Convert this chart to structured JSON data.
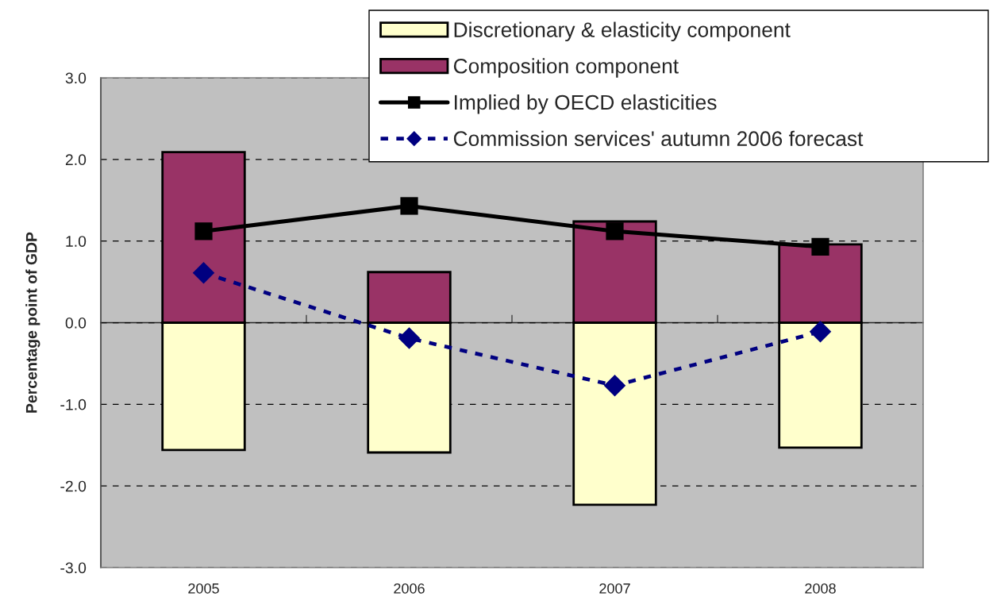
{
  "chart_data": {
    "type": "bar",
    "ylabel": "Percentage point of GDP",
    "categories": [
      "2005",
      "2006",
      "2007",
      "2008"
    ],
    "stacked": true,
    "series": [
      {
        "name": "Discretionary & elasticity component",
        "color": "#ffffcc",
        "values": [
          -1.56,
          -1.59,
          -2.23,
          -1.53
        ]
      },
      {
        "name": "Composition component",
        "color": "#993366",
        "values": [
          2.09,
          0.62,
          1.24,
          0.96
        ]
      },
      {
        "name": "Implied by OECD elasticities",
        "type": "line",
        "color": "#000000",
        "marker": "square",
        "line_style": "solid",
        "values": [
          1.12,
          1.43,
          1.12,
          0.93
        ]
      },
      {
        "name": "Commission services' autumn 2006 forecast",
        "type": "line",
        "color": "#000080",
        "marker": "diamond",
        "line_style": "dashed",
        "values": [
          0.61,
          -0.19,
          -0.77,
          -0.11
        ]
      }
    ],
    "ylim": [
      -3,
      3
    ],
    "yticks": [
      {
        "value": -3,
        "label": "-3.0"
      },
      {
        "value": -2,
        "label": "-2.0"
      },
      {
        "value": -1,
        "label": "-1.0"
      },
      {
        "value": 0,
        "label": "0.0"
      },
      {
        "value": 1,
        "label": "1.0"
      },
      {
        "value": 2,
        "label": "2.0"
      },
      {
        "value": 3,
        "label": "3.0"
      }
    ],
    "grid": "y",
    "legend": "top right"
  }
}
